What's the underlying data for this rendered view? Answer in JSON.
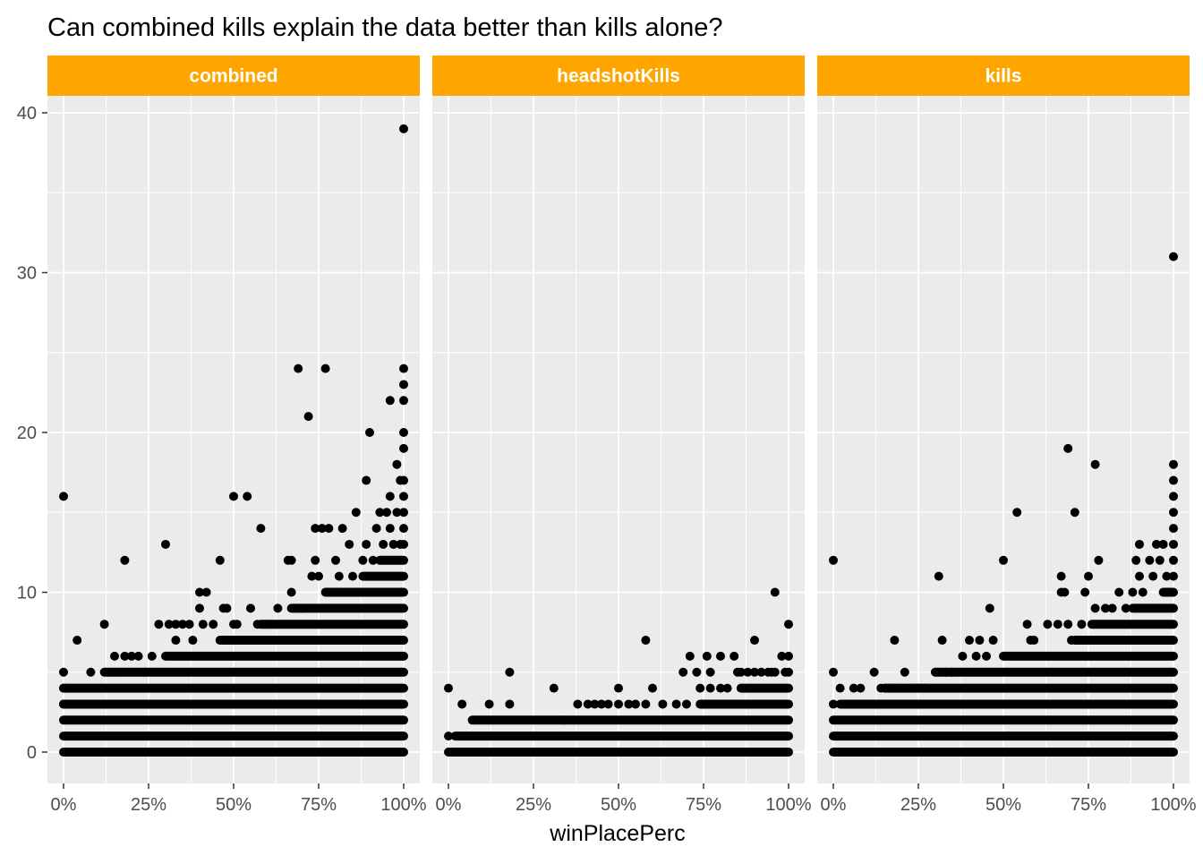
{
  "chart_data": {
    "type": "scatter",
    "title": "Can combined kills explain the data better than kills alone?",
    "xlabel": "winPlacePerc",
    "ylabel": "",
    "xlim": [
      0,
      1
    ],
    "ylim": [
      0,
      40
    ],
    "x_ticks": [
      0,
      0.25,
      0.5,
      0.75,
      1
    ],
    "x_tick_labels": [
      "0%",
      "25%",
      "50%",
      "75%",
      "100%"
    ],
    "y_ticks": [
      0,
      10,
      20,
      30,
      40
    ],
    "y_tick_labels": [
      "0",
      "10",
      "20",
      "30",
      "40"
    ],
    "grid": true,
    "colors": {
      "strip": "#FFA500",
      "panel": "#EBEBEB",
      "grid": "#FFFFFF",
      "point": "#000000",
      "tick": "#4D4D4D"
    },
    "panels": [
      {
        "name": "combined",
        "bands": [
          {
            "y": 0,
            "x": [
              0,
              1
            ]
          },
          {
            "y": 1,
            "x": [
              0,
              1
            ]
          },
          {
            "y": 2,
            "x": [
              0,
              1
            ]
          },
          {
            "y": 3,
            "x": [
              0,
              1
            ]
          },
          {
            "y": 4,
            "x": [
              0,
              1
            ]
          },
          {
            "y": 5,
            "x": [
              0.12,
              1
            ]
          },
          {
            "y": 6,
            "x": [
              0.3,
              1
            ]
          },
          {
            "y": 7,
            "x": [
              0.46,
              1
            ]
          },
          {
            "y": 8,
            "x": [
              0.58,
              1
            ]
          },
          {
            "y": 9,
            "x": [
              0.67,
              1
            ]
          },
          {
            "y": 10,
            "x": [
              0.77,
              1
            ]
          },
          {
            "y": 11,
            "x": [
              0.88,
              1
            ]
          },
          {
            "y": 12,
            "x": [
              0.93,
              1
            ]
          }
        ],
        "points": [
          [
            0,
            16
          ],
          [
            0,
            5
          ],
          [
            0,
            4
          ],
          [
            0,
            3
          ],
          [
            0.04,
            7
          ],
          [
            0.08,
            5
          ],
          [
            0.12,
            8
          ],
          [
            0.15,
            6
          ],
          [
            0.15,
            5
          ],
          [
            0.18,
            12
          ],
          [
            0.18,
            6
          ],
          [
            0.2,
            6
          ],
          [
            0.22,
            6
          ],
          [
            0.24,
            5
          ],
          [
            0.26,
            6
          ],
          [
            0.28,
            8
          ],
          [
            0.3,
            13
          ],
          [
            0.31,
            8
          ],
          [
            0.33,
            8
          ],
          [
            0.33,
            7
          ],
          [
            0.35,
            8
          ],
          [
            0.37,
            8
          ],
          [
            0.38,
            7
          ],
          [
            0.4,
            10
          ],
          [
            0.4,
            9
          ],
          [
            0.41,
            8
          ],
          [
            0.42,
            10
          ],
          [
            0.44,
            8
          ],
          [
            0.46,
            12
          ],
          [
            0.47,
            9
          ],
          [
            0.48,
            9
          ],
          [
            0.5,
            16
          ],
          [
            0.5,
            8
          ],
          [
            0.51,
            8
          ],
          [
            0.54,
            16
          ],
          [
            0.55,
            9
          ],
          [
            0.57,
            8
          ],
          [
            0.58,
            14
          ],
          [
            0.6,
            8
          ],
          [
            0.63,
            9
          ],
          [
            0.66,
            12
          ],
          [
            0.67,
            12
          ],
          [
            0.67,
            10
          ],
          [
            0.69,
            24
          ],
          [
            0.7,
            9
          ],
          [
            0.72,
            21
          ],
          [
            0.73,
            11
          ],
          [
            0.74,
            12
          ],
          [
            0.74,
            14
          ],
          [
            0.75,
            11
          ],
          [
            0.76,
            14
          ],
          [
            0.77,
            24
          ],
          [
            0.78,
            14
          ],
          [
            0.8,
            12
          ],
          [
            0.81,
            11
          ],
          [
            0.82,
            14
          ],
          [
            0.84,
            13
          ],
          [
            0.85,
            11
          ],
          [
            0.86,
            15
          ],
          [
            0.88,
            12
          ],
          [
            0.89,
            17
          ],
          [
            0.89,
            13
          ],
          [
            0.9,
            20
          ],
          [
            0.9,
            11
          ],
          [
            0.91,
            12
          ],
          [
            0.92,
            14
          ],
          [
            0.93,
            15
          ],
          [
            0.94,
            13
          ],
          [
            0.95,
            15
          ],
          [
            0.96,
            22
          ],
          [
            0.96,
            16
          ],
          [
            0.96,
            14
          ],
          [
            0.97,
            13
          ],
          [
            0.98,
            18
          ],
          [
            0.98,
            15
          ],
          [
            0.99,
            17
          ],
          [
            0.99,
            13
          ],
          [
            1,
            39
          ],
          [
            1,
            24
          ],
          [
            1,
            23
          ],
          [
            1,
            22
          ],
          [
            1,
            20
          ],
          [
            1,
            19
          ],
          [
            1,
            17
          ],
          [
            1,
            16
          ],
          [
            1,
            15
          ],
          [
            1,
            14
          ],
          [
            1,
            13
          ]
        ]
      },
      {
        "name": "headshotKills",
        "bands": [
          {
            "y": 0,
            "x": [
              0,
              1
            ]
          },
          {
            "y": 1,
            "x": [
              0.02,
              1
            ]
          },
          {
            "y": 2,
            "x": [
              0.07,
              1
            ]
          },
          {
            "y": 3,
            "x": [
              0.74,
              1
            ]
          },
          {
            "y": 4,
            "x": [
              0.86,
              1
            ]
          }
        ],
        "points": [
          [
            0,
            4
          ],
          [
            0,
            1
          ],
          [
            0.04,
            3
          ],
          [
            0.12,
            3
          ],
          [
            0.18,
            5
          ],
          [
            0.18,
            3
          ],
          [
            0.31,
            4
          ],
          [
            0.34,
            2
          ],
          [
            0.38,
            3
          ],
          [
            0.41,
            3
          ],
          [
            0.43,
            3
          ],
          [
            0.45,
            3
          ],
          [
            0.47,
            3
          ],
          [
            0.5,
            4
          ],
          [
            0.5,
            3
          ],
          [
            0.53,
            3
          ],
          [
            0.55,
            3
          ],
          [
            0.58,
            7
          ],
          [
            0.58,
            3
          ],
          [
            0.6,
            4
          ],
          [
            0.63,
            3
          ],
          [
            0.67,
            3
          ],
          [
            0.69,
            5
          ],
          [
            0.7,
            3
          ],
          [
            0.71,
            6
          ],
          [
            0.73,
            5
          ],
          [
            0.74,
            4
          ],
          [
            0.76,
            6
          ],
          [
            0.77,
            4
          ],
          [
            0.77,
            5
          ],
          [
            0.8,
            6
          ],
          [
            0.8,
            4
          ],
          [
            0.82,
            4
          ],
          [
            0.84,
            6
          ],
          [
            0.85,
            5
          ],
          [
            0.86,
            5
          ],
          [
            0.88,
            5
          ],
          [
            0.9,
            7
          ],
          [
            0.9,
            5
          ],
          [
            0.92,
            5
          ],
          [
            0.94,
            5
          ],
          [
            0.95,
            5
          ],
          [
            0.96,
            10
          ],
          [
            0.96,
            5
          ],
          [
            0.98,
            6
          ],
          [
            0.99,
            5
          ],
          [
            1,
            8
          ],
          [
            1,
            6
          ],
          [
            1,
            5
          ]
        ]
      },
      {
        "name": "kills",
        "bands": [
          {
            "y": 0,
            "x": [
              0,
              1
            ]
          },
          {
            "y": 1,
            "x": [
              0,
              1
            ]
          },
          {
            "y": 2,
            "x": [
              0,
              1
            ]
          },
          {
            "y": 3,
            "x": [
              0.02,
              1
            ]
          },
          {
            "y": 4,
            "x": [
              0.15,
              1
            ]
          },
          {
            "y": 5,
            "x": [
              0.3,
              1
            ]
          },
          {
            "y": 6,
            "x": [
              0.5,
              1
            ]
          },
          {
            "y": 7,
            "x": [
              0.71,
              1
            ]
          },
          {
            "y": 8,
            "x": [
              0.76,
              1
            ]
          },
          {
            "y": 9,
            "x": [
              0.88,
              1
            ]
          },
          {
            "y": 10,
            "x": [
              0.97,
              1
            ]
          }
        ],
        "points": [
          [
            0,
            12
          ],
          [
            0,
            5
          ],
          [
            0,
            3
          ],
          [
            0.02,
            4
          ],
          [
            0.04,
            3
          ],
          [
            0.06,
            4
          ],
          [
            0.08,
            4
          ],
          [
            0.1,
            3
          ],
          [
            0.12,
            5
          ],
          [
            0.14,
            4
          ],
          [
            0.18,
            7
          ],
          [
            0.18,
            4
          ],
          [
            0.21,
            5
          ],
          [
            0.23,
            4
          ],
          [
            0.25,
            4
          ],
          [
            0.27,
            4
          ],
          [
            0.3,
            5
          ],
          [
            0.31,
            11
          ],
          [
            0.32,
            7
          ],
          [
            0.33,
            5
          ],
          [
            0.35,
            5
          ],
          [
            0.38,
            6
          ],
          [
            0.4,
            7
          ],
          [
            0.42,
            6
          ],
          [
            0.43,
            7
          ],
          [
            0.45,
            6
          ],
          [
            0.46,
            9
          ],
          [
            0.47,
            7
          ],
          [
            0.5,
            12
          ],
          [
            0.54,
            15
          ],
          [
            0.57,
            8
          ],
          [
            0.58,
            7
          ],
          [
            0.59,
            7
          ],
          [
            0.63,
            8
          ],
          [
            0.66,
            8
          ],
          [
            0.67,
            11
          ],
          [
            0.67,
            10
          ],
          [
            0.68,
            10
          ],
          [
            0.69,
            19
          ],
          [
            0.69,
            8
          ],
          [
            0.7,
            7
          ],
          [
            0.71,
            15
          ],
          [
            0.73,
            8
          ],
          [
            0.74,
            10
          ],
          [
            0.75,
            11
          ],
          [
            0.77,
            18
          ],
          [
            0.77,
            9
          ],
          [
            0.78,
            12
          ],
          [
            0.8,
            9
          ],
          [
            0.82,
            9
          ],
          [
            0.84,
            10
          ],
          [
            0.86,
            9
          ],
          [
            0.88,
            10
          ],
          [
            0.89,
            12
          ],
          [
            0.9,
            13
          ],
          [
            0.9,
            11
          ],
          [
            0.91,
            10
          ],
          [
            0.93,
            12
          ],
          [
            0.94,
            11
          ],
          [
            0.95,
            13
          ],
          [
            0.96,
            12
          ],
          [
            0.97,
            13
          ],
          [
            0.98,
            11
          ],
          [
            1,
            31
          ],
          [
            1,
            18
          ],
          [
            1,
            17
          ],
          [
            1,
            16
          ],
          [
            1,
            15
          ],
          [
            1,
            14
          ],
          [
            1,
            13
          ],
          [
            1,
            12
          ],
          [
            1,
            11
          ]
        ]
      }
    ]
  }
}
